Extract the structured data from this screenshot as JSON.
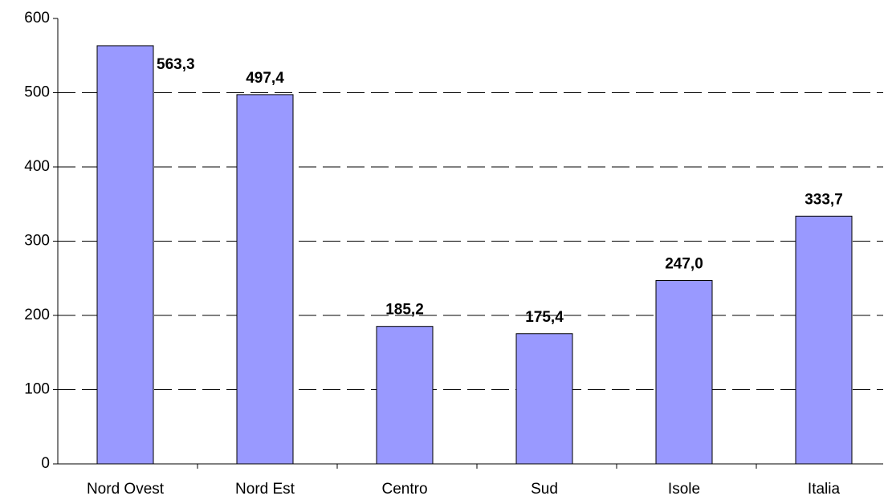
{
  "chart_data": {
    "type": "bar",
    "categories": [
      "Nord Ovest",
      "Nord Est",
      "Centro",
      "Sud",
      "Isole",
      "Italia"
    ],
    "values": [
      563.3,
      497.4,
      185.2,
      175.4,
      247.0,
      333.7
    ],
    "value_labels": [
      "563,3",
      "497,4",
      "185,2",
      "175,4",
      "247,0",
      "333,7"
    ],
    "color": "#9999ff",
    "ylim": [
      0,
      600
    ],
    "yticks": [
      0,
      100,
      200,
      300,
      400,
      500,
      600
    ],
    "grid": true
  }
}
